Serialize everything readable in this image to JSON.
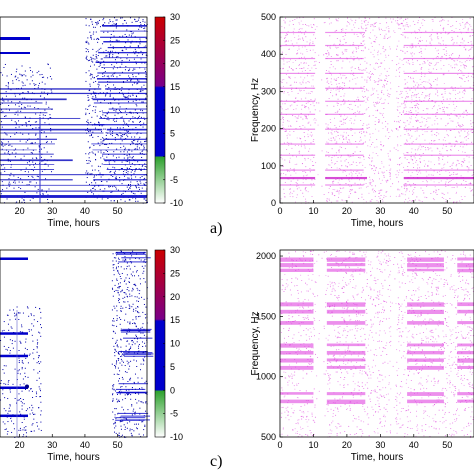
{
  "panel_labels": [
    "a)",
    "c)"
  ],
  "chart_data": [
    {
      "type": "heatmap",
      "panel": "top-left",
      "xlabel": "Time, hours",
      "ylabel": "",
      "x_ticks": [
        20,
        30,
        40,
        50
      ],
      "xlim": [
        14,
        59
      ],
      "colorbar": {
        "ticks": [
          30,
          25,
          20,
          15,
          10,
          5,
          0,
          -5,
          -10
        ],
        "range": [
          -10,
          30
        ],
        "colors": [
          "#ffffff",
          "#2aa02a",
          "#0000cc",
          "#cc0000"
        ]
      },
      "grid": false
    },
    {
      "type": "heatmap",
      "panel": "top-right",
      "xlabel": "Time, hours",
      "ylabel": "Frequency, Hz",
      "x_ticks": [
        0,
        10,
        20,
        30,
        40,
        50
      ],
      "y_ticks": [
        0,
        100,
        200,
        300,
        400,
        500
      ],
      "xlim": [
        0,
        58
      ],
      "ylim": [
        0,
        500
      ],
      "color": "#dd33dd",
      "grid": false
    },
    {
      "type": "heatmap",
      "panel": "bottom-left",
      "xlabel": "Time, hours",
      "ylabel": "",
      "x_ticks": [
        20,
        30,
        40,
        50
      ],
      "xlim": [
        14,
        59
      ],
      "colorbar": {
        "ticks": [
          30,
          25,
          20,
          15,
          10,
          5,
          0,
          -5,
          -10
        ],
        "range": [
          -10,
          30
        ],
        "colors": [
          "#ffffff",
          "#2aa02a",
          "#0000cc",
          "#cc0000"
        ]
      },
      "grid": false
    },
    {
      "type": "heatmap",
      "panel": "bottom-right",
      "xlabel": "Time, hours",
      "ylabel": "Frequency, Hz",
      "x_ticks": [
        0,
        10,
        20,
        30,
        40,
        50
      ],
      "y_ticks": [
        500,
        1000,
        1500,
        2000
      ],
      "xlim": [
        0,
        58
      ],
      "ylim": [
        500,
        2050
      ],
      "color": "#dd33dd",
      "grid": false
    }
  ]
}
